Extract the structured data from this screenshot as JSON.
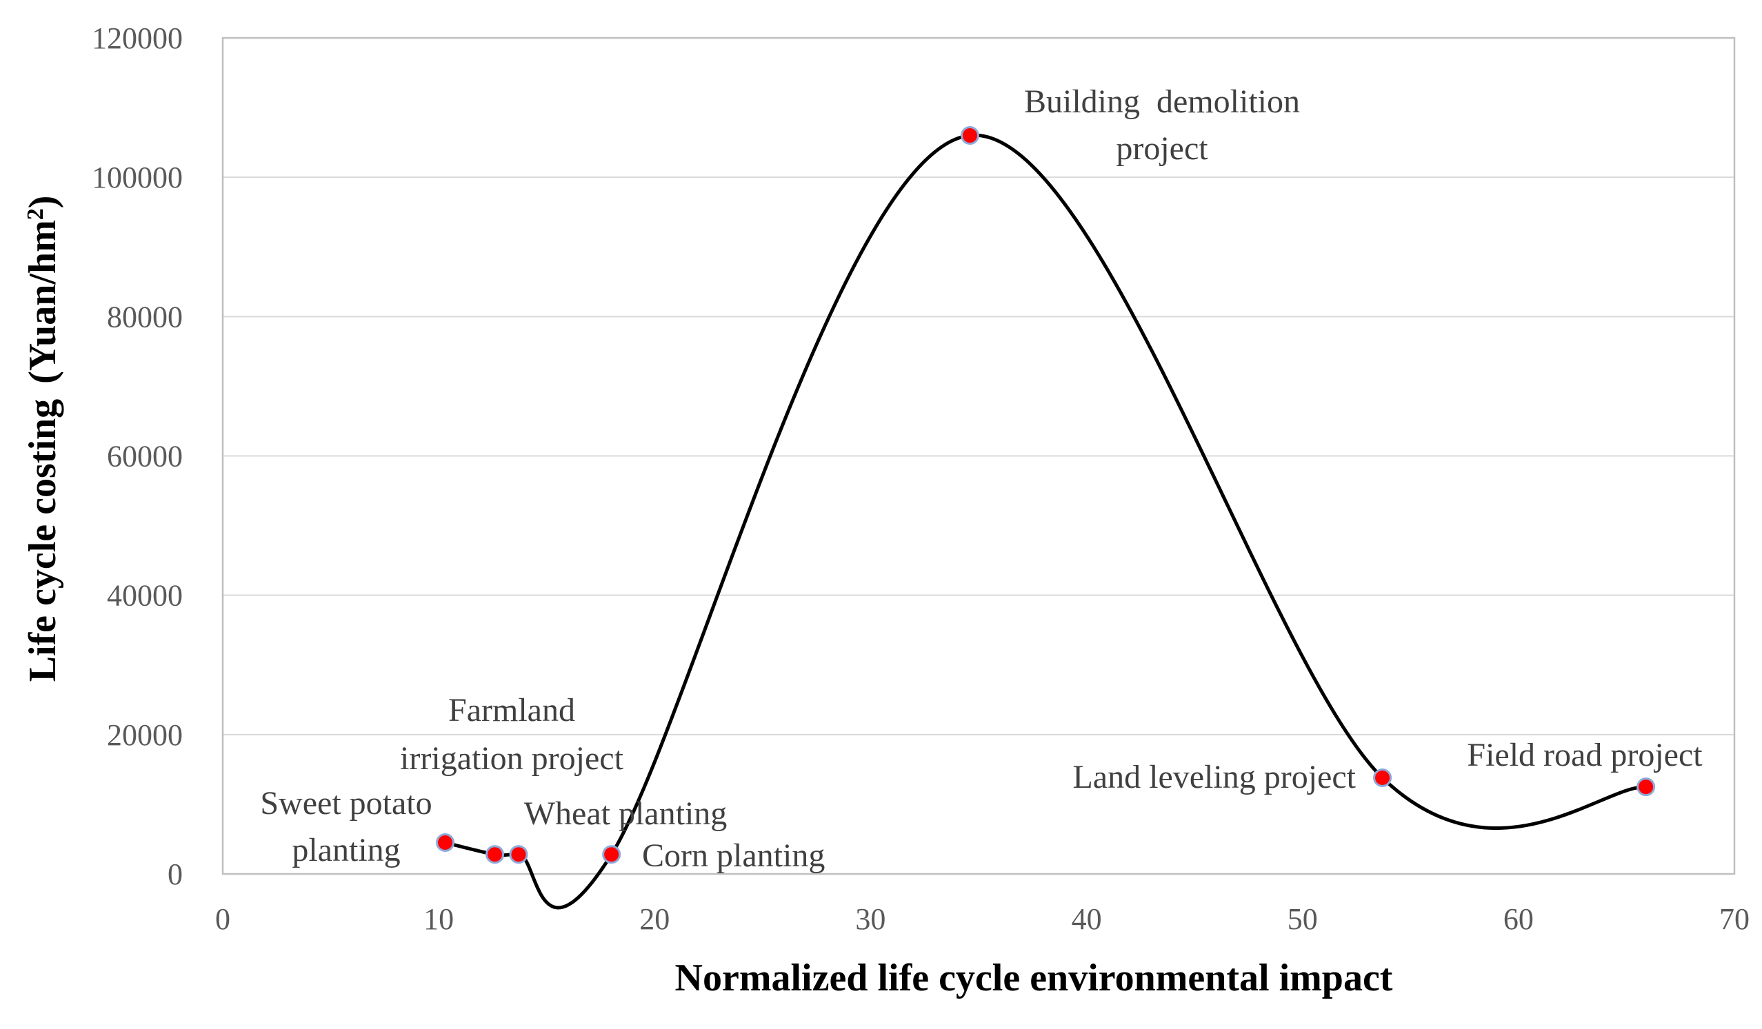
{
  "chart_data": {
    "type": "scatter",
    "smooth_line": true,
    "xlabel": "Normalized life cycle environmental impact",
    "ylabel": "Life cycle costing",
    "ylabel_unit_prefix": "(Yuan/hm",
    "ylabel_unit_sup": "2",
    "ylabel_unit_suffix": ")",
    "xlim": [
      0,
      70
    ],
    "ylim": [
      0,
      120000
    ],
    "xticks": [
      0,
      10,
      20,
      30,
      40,
      50,
      60,
      70
    ],
    "yticks": [
      0,
      20000,
      40000,
      60000,
      80000,
      100000,
      120000
    ],
    "grid": true,
    "colors": {
      "line": "#000000",
      "marker": "#ff0000",
      "marker_edge": "#8ea9db",
      "grid": "#d9d9d9"
    },
    "points": [
      {
        "x": 10.3,
        "y": 4500
      },
      {
        "x": 12.6,
        "y": 2800
      },
      {
        "x": 13.7,
        "y": 2800
      },
      {
        "x": 18.0,
        "y": 2800
      },
      {
        "x": 34.6,
        "y": 106000
      },
      {
        "x": 53.7,
        "y": 13800
      },
      {
        "x": 65.9,
        "y": 12500
      }
    ],
    "annotations": [
      {
        "lines": [
          "Sweet potato",
          "planting"
        ]
      },
      {
        "lines": [
          "Farmland",
          "irrigation project"
        ]
      },
      {
        "lines": [
          "Wheat planting"
        ]
      },
      {
        "lines": [
          "Corn planting"
        ]
      },
      {
        "lines": [
          "Building  demolition",
          "project"
        ]
      },
      {
        "lines": [
          "Land leveling project"
        ]
      },
      {
        "lines": [
          "Field road project"
        ]
      }
    ]
  }
}
